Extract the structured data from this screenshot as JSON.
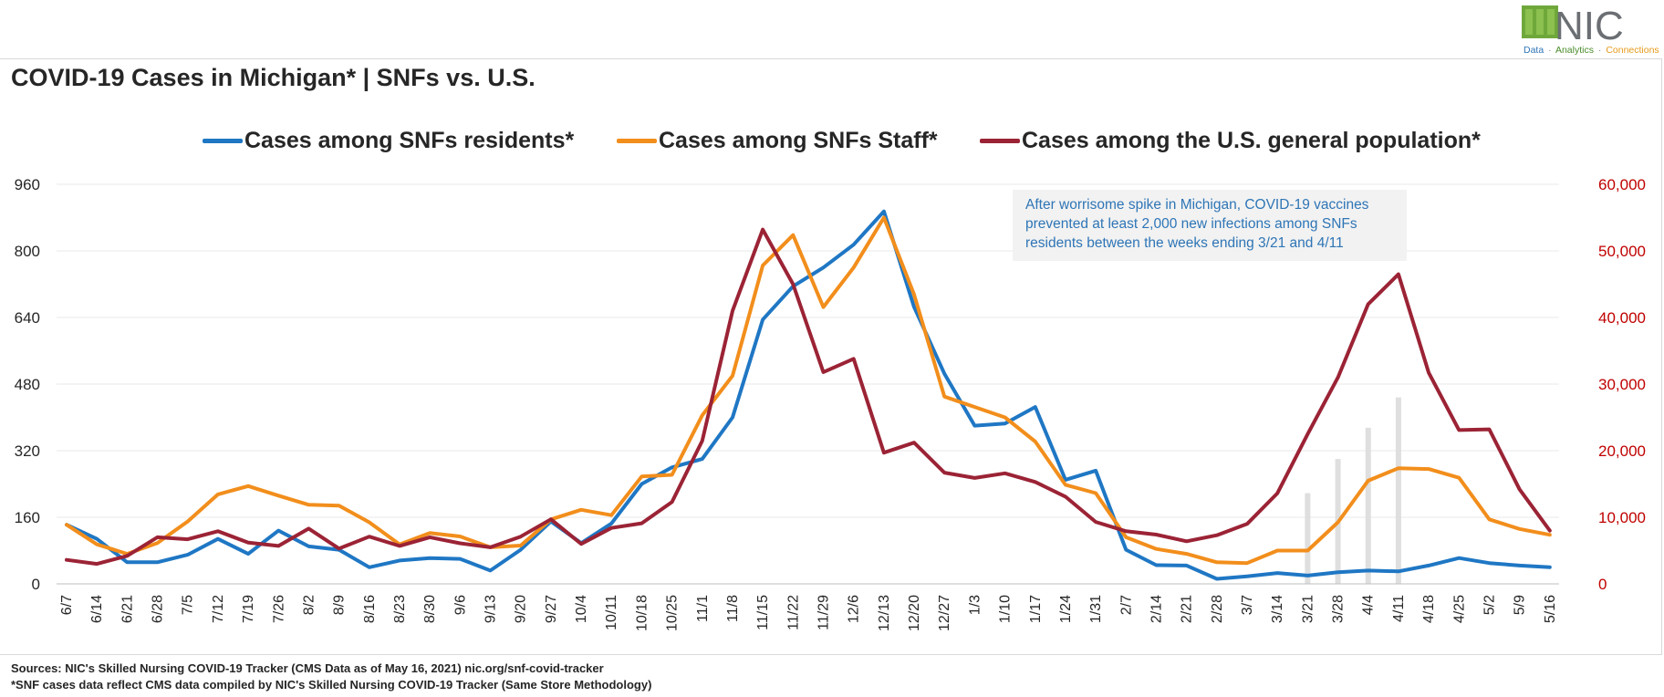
{
  "logo": {
    "text": "NIC",
    "tagline_1": "Data",
    "tagline_2": "Analytics",
    "tagline_3": "Connections",
    "sep": "·"
  },
  "title": "COVID-19 Cases in Michigan*  | SNFs vs. U.S.",
  "annotation": {
    "line_1": "After worrisome spike in Michigan, COVID-19 vaccines",
    "line_2": "prevented at least 2,000 new infections among SNFs",
    "line_3": "residents between the weeks ending 3/21 and 4/11"
  },
  "footer": {
    "line_1": "Sources: NIC's Skilled Nursing COVID-19 Tracker (CMS Data as of May 16, 2021)  nic.org/snf-covid-tracker",
    "line_2": "*SNF cases data reflect CMS data compiled by NIC's Skilled Nursing COVID-19 Tracker (Same Store Methodology)"
  },
  "colors": {
    "residents": "#1f77c4",
    "staff": "#f28e1c",
    "us": "#9b2335",
    "left_axis": "#262626",
    "right_axis": "#c00000",
    "grid": "#e8e8e8",
    "bars": "#d9d9d9"
  },
  "chart_data": {
    "type": "line",
    "categories": [
      "6/7",
      "6/14",
      "6/21",
      "6/28",
      "7/5",
      "7/12",
      "7/19",
      "7/26",
      "8/2",
      "8/9",
      "8/16",
      "8/23",
      "8/30",
      "9/6",
      "9/13",
      "9/20",
      "9/27",
      "10/4",
      "10/11",
      "10/18",
      "10/25",
      "11/1",
      "11/8",
      "11/15",
      "11/22",
      "11/29",
      "12/6",
      "12/13",
      "12/20",
      "12/27",
      "1/3",
      "1/10",
      "1/17",
      "1/24",
      "1/31",
      "2/7",
      "2/14",
      "2/21",
      "2/28",
      "3/7",
      "3/14",
      "3/21",
      "3/28",
      "4/4",
      "4/11",
      "4/18",
      "4/25",
      "5/2",
      "5/9",
      "5/16"
    ],
    "left_axis": {
      "min": 0,
      "max": 960,
      "ticks": [
        0,
        160,
        320,
        480,
        640,
        800,
        960
      ],
      "tick_labels": [
        "0",
        "160",
        "320",
        "480",
        "640",
        "800",
        "960"
      ]
    },
    "right_axis": {
      "min": 0,
      "max": 60000,
      "ticks": [
        0,
        10000,
        20000,
        30000,
        40000,
        50000,
        60000
      ],
      "tick_labels": [
        "0",
        "10,000",
        "20,000",
        "30,000",
        "40,000",
        "50,000",
        "60,000"
      ]
    },
    "series": [
      {
        "name": "Cases among SNFs residents*",
        "axis": "left",
        "values": [
          142,
          108,
          52,
          52,
          70,
          108,
          72,
          128,
          90,
          82,
          40,
          56,
          62,
          60,
          32,
          82,
          150,
          98,
          145,
          240,
          280,
          300,
          400,
          635,
          715,
          760,
          815,
          895,
          665,
          505,
          380,
          385,
          425,
          250,
          272,
          82,
          45,
          44,
          12,
          18,
          26,
          20,
          28,
          32,
          30,
          44,
          62,
          50,
          44,
          40
        ]
      },
      {
        "name": "Cases among SNFs Staff*",
        "axis": "left",
        "values": [
          142,
          95,
          72,
          98,
          150,
          215,
          235,
          212,
          190,
          188,
          148,
          95,
          122,
          114,
          88,
          92,
          155,
          178,
          165,
          258,
          262,
          405,
          500,
          765,
          838,
          665,
          760,
          880,
          695,
          450,
          425,
          400,
          342,
          238,
          218,
          112,
          84,
          72,
          52,
          50,
          80,
          80,
          148,
          248,
          278,
          276,
          255,
          155,
          132,
          118
        ]
      },
      {
        "name": "Cases among the U.S. general population*",
        "axis": "right",
        "values": [
          3600,
          3000,
          4200,
          7000,
          6700,
          7900,
          6200,
          5700,
          8300,
          5300,
          7100,
          5700,
          7000,
          6100,
          5500,
          7100,
          9700,
          6000,
          8400,
          9100,
          12300,
          21500,
          41000,
          53200,
          45000,
          31800,
          33800,
          19700,
          21200,
          16700,
          15900,
          16600,
          15300,
          13100,
          9300,
          7900,
          7400,
          6400,
          7300,
          9000,
          13600,
          22500,
          31000,
          42000,
          46500,
          31700,
          23100,
          23200,
          14200,
          8000
        ]
      }
    ],
    "shaded_bars": [
      {
        "category": "3/21",
        "value": 218
      },
      {
        "category": "3/28",
        "value": 300
      },
      {
        "category": "4/4",
        "value": 375
      },
      {
        "category": "4/11",
        "value": 448
      }
    ],
    "gridlines": true,
    "legend_position": "top"
  }
}
